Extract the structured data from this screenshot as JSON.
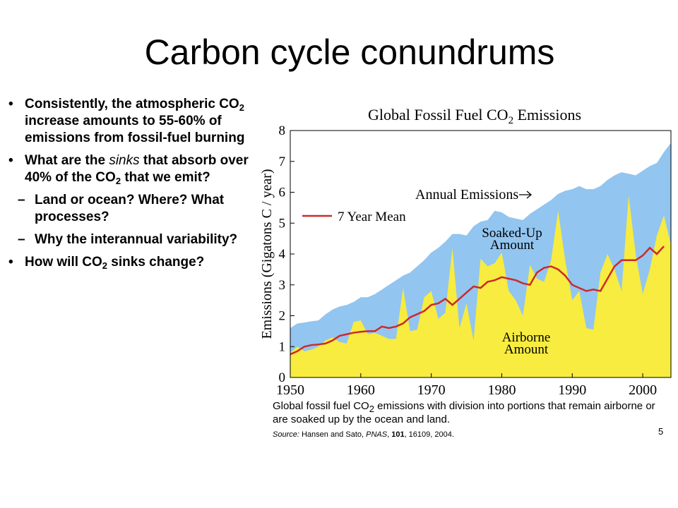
{
  "slide": {
    "title": "Carbon cycle conundrums",
    "page_number": "5",
    "bullets": [
      {
        "parts": [
          "Consistently, the atmospheric CO",
          "2",
          " increase amounts to 55-60% of emissions from fossil-fuel burning"
        ]
      },
      {
        "parts": [
          "What are the ",
          "sinks",
          " that absorb over 40% of the CO",
          "2",
          " that we emit?"
        ],
        "sub": [
          [
            "Land or ocean? Where? What processes?"
          ],
          [
            "Why the interannual variability?"
          ]
        ]
      },
      {
        "parts": [
          "How will CO",
          "2",
          " sinks change?"
        ]
      }
    ]
  },
  "chart_data": {
    "type": "area",
    "title": [
      "Global Fossil Fuel CO",
      "2",
      " Emissions"
    ],
    "y_label": "Emissions (Gigatons C / year)",
    "caption": [
      "Global fossil fuel CO",
      "2",
      " emissions with division into portions that remain airborne or are soaked up by the ocean and land."
    ],
    "source": [
      "Source:",
      " Hansen and Sato, ",
      "PNAS",
      ", ",
      "101",
      ", 16109, 2004."
    ],
    "annotations": [
      "Soaked-Up Amount"
    ],
    "x": [
      1950,
      1951,
      1952,
      1953,
      1954,
      1955,
      1956,
      1957,
      1958,
      1959,
      1960,
      1961,
      1962,
      1963,
      1964,
      1965,
      1966,
      1967,
      1968,
      1969,
      1970,
      1971,
      1972,
      1973,
      1974,
      1975,
      1976,
      1977,
      1978,
      1979,
      1980,
      1981,
      1982,
      1983,
      1984,
      1985,
      1986,
      1987,
      1988,
      1989,
      1990,
      1991,
      1992,
      1993,
      1994,
      1995,
      1996,
      1997,
      1998,
      1999,
      2000,
      2001,
      2002,
      2003,
      2004
    ],
    "series": [
      {
        "name": "Annual Emissions",
        "color": "#92c5f0",
        "values": [
          1.6,
          1.75,
          1.78,
          1.82,
          1.85,
          2.05,
          2.2,
          2.3,
          2.35,
          2.45,
          2.6,
          2.6,
          2.7,
          2.85,
          3.0,
          3.15,
          3.3,
          3.4,
          3.6,
          3.8,
          4.05,
          4.2,
          4.4,
          4.65,
          4.65,
          4.6,
          4.9,
          5.05,
          5.1,
          5.4,
          5.35,
          5.2,
          5.15,
          5.1,
          5.3,
          5.45,
          5.6,
          5.75,
          5.95,
          6.05,
          6.1,
          6.2,
          6.1,
          6.1,
          6.2,
          6.4,
          6.55,
          6.65,
          6.6,
          6.55,
          6.7,
          6.85,
          6.95,
          7.3,
          7.6
        ]
      },
      {
        "name": "Airborne Amount",
        "color": "#f7ec3f",
        "values": [
          0.8,
          1.0,
          0.85,
          0.9,
          1.0,
          1.2,
          1.3,
          1.15,
          1.1,
          1.8,
          1.85,
          1.4,
          1.45,
          1.35,
          1.25,
          1.25,
          2.9,
          1.5,
          1.55,
          2.6,
          2.8,
          1.9,
          2.1,
          4.2,
          1.6,
          2.4,
          1.2,
          3.85,
          3.6,
          3.7,
          4.05,
          2.8,
          2.5,
          2.0,
          3.65,
          3.2,
          3.1,
          3.8,
          5.4,
          3.8,
          2.5,
          2.8,
          1.6,
          1.55,
          3.4,
          4.0,
          3.5,
          2.8,
          5.9,
          4.0,
          2.7,
          3.5,
          4.6,
          5.25,
          4.3
        ]
      },
      {
        "name": "7 Year Mean",
        "color": "#cc2a2a",
        "values": [
          0.75,
          0.85,
          1.0,
          1.05,
          1.07,
          1.1,
          1.2,
          1.35,
          1.4,
          1.45,
          1.48,
          1.5,
          1.5,
          1.65,
          1.6,
          1.65,
          1.75,
          1.95,
          2.05,
          2.15,
          2.35,
          2.4,
          2.55,
          2.35,
          2.55,
          2.75,
          2.95,
          2.9,
          3.1,
          3.15,
          3.25,
          3.2,
          3.15,
          3.05,
          3.0,
          3.4,
          3.55,
          3.6,
          3.5,
          3.3,
          3.0,
          2.9,
          2.8,
          2.85,
          2.8,
          3.2,
          3.6,
          3.8,
          3.8,
          3.8,
          3.95,
          4.2,
          4.0,
          4.25,
          null
        ]
      }
    ],
    "xlim": [
      1950,
      2004
    ],
    "xticks": [
      1950,
      1960,
      1970,
      1980,
      1990,
      2000
    ],
    "ylim": [
      0,
      8
    ],
    "yticks": [
      0,
      1,
      2,
      3,
      4,
      5,
      6,
      7,
      8
    ],
    "grid": false
  }
}
